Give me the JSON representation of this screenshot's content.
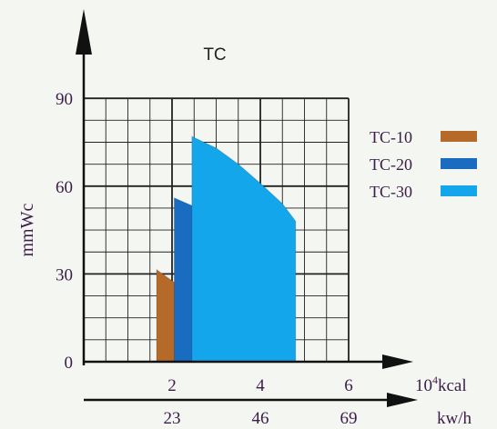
{
  "chart_data": {
    "type": "area",
    "title": "TC",
    "ylabel": "mmWc",
    "ylim": [
      0,
      90
    ],
    "yticks": [
      "0",
      "30",
      "60",
      "90"
    ],
    "grid": true,
    "legend_position": "right",
    "x_axes": [
      {
        "label": "10⁴kcal",
        "label_base": "10",
        "label_sup": "4",
        "label_rest": "kcal",
        "min": 0,
        "max": 6,
        "ticks": [
          "2",
          "4",
          "6"
        ]
      },
      {
        "label": "kw/h",
        "ticks": [
          "23",
          "46",
          "69"
        ]
      }
    ],
    "series": [
      {
        "name": "TC-10",
        "color": "#b56a2a",
        "x": [
          1.65,
          1.65,
          2.2,
          2.7,
          3.1,
          3.45,
          3.45
        ],
        "y": [
          0,
          31.5,
          25.5,
          18.5,
          11.5,
          4,
          0
        ]
      },
      {
        "name": "TC-20",
        "color": "#1a6cc0",
        "x": [
          2.05,
          2.05,
          2.5,
          3.0,
          3.5,
          4.0,
          4.0
        ],
        "y": [
          0,
          56,
          53,
          49,
          43,
          35,
          0
        ]
      },
      {
        "name": "TC-30",
        "color": "#14a6ea",
        "x": [
          2.45,
          2.45,
          3.0,
          3.5,
          4.0,
          4.5,
          4.8,
          4.8
        ],
        "y": [
          0,
          77,
          73,
          67.5,
          61,
          54,
          48,
          0
        ]
      }
    ]
  }
}
